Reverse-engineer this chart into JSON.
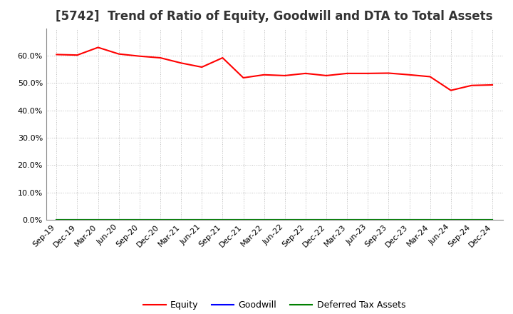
{
  "title": "[5742]  Trend of Ratio of Equity, Goodwill and DTA to Total Assets",
  "x_labels": [
    "Sep-19",
    "Dec-19",
    "Mar-20",
    "Jun-20",
    "Sep-20",
    "Dec-20",
    "Mar-21",
    "Jun-21",
    "Sep-21",
    "Dec-21",
    "Mar-22",
    "Jun-22",
    "Sep-22",
    "Dec-22",
    "Mar-23",
    "Jun-23",
    "Sep-23",
    "Dec-23",
    "Mar-24",
    "Jun-24",
    "Sep-24",
    "Dec-24"
  ],
  "equity": [
    0.604,
    0.602,
    0.63,
    0.606,
    0.598,
    0.592,
    0.573,
    0.558,
    0.592,
    0.519,
    0.53,
    0.527,
    0.535,
    0.527,
    0.535,
    0.535,
    0.536,
    0.53,
    0.523,
    0.473,
    0.491,
    0.493
  ],
  "goodwill": [
    0.0,
    0.0,
    0.0,
    0.0,
    0.0,
    0.0,
    0.0,
    0.0,
    0.0,
    0.0,
    0.0,
    0.0,
    0.0,
    0.0,
    0.0,
    0.0,
    0.0,
    0.0,
    0.0,
    0.0,
    0.0,
    0.0
  ],
  "dta": [
    0.0,
    0.0,
    0.0,
    0.0,
    0.0,
    0.0,
    0.0,
    0.0,
    0.0,
    0.0,
    0.0,
    0.0,
    0.0,
    0.0,
    0.0,
    0.0,
    0.0,
    0.0,
    0.0,
    0.0,
    0.0,
    0.0
  ],
  "equity_color": "#FF0000",
  "goodwill_color": "#0000FF",
  "dta_color": "#008000",
  "ylim": [
    0.0,
    0.7
  ],
  "yticks": [
    0.0,
    0.1,
    0.2,
    0.3,
    0.4,
    0.5,
    0.6
  ],
  "background_color": "#FFFFFF",
  "grid_color": "#AAAAAA",
  "title_fontsize": 12,
  "axis_fontsize": 8,
  "legend_labels": [
    "Equity",
    "Goodwill",
    "Deferred Tax Assets"
  ]
}
